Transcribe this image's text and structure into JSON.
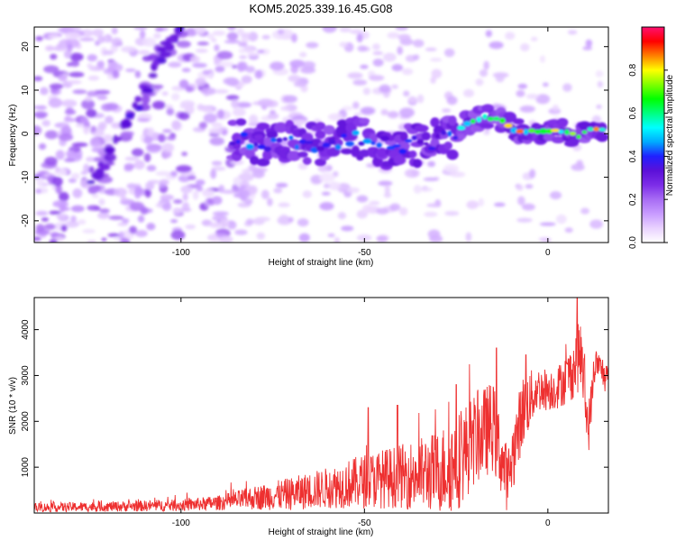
{
  "figure_title": "KOM5.2025.339.16.45.G08",
  "chart_data": [
    {
      "type": "heatmap",
      "name": "spectrogram",
      "xlabel": "Height of straight line (km)",
      "ylabel": "Frequency (Hz)",
      "xlim": [
        -140,
        16.5
      ],
      "ylim": [
        -25,
        24.5
      ],
      "xticks": [
        -100,
        -50,
        0
      ],
      "yticks": [
        -20,
        -10,
        0,
        10,
        20
      ],
      "xtick_labels": [
        "-100",
        "-50",
        "0"
      ],
      "ytick_labels": [
        "-20",
        "-10",
        "0",
        "10",
        "20"
      ],
      "colorbar": {
        "label": "Normalized spectral amplitude",
        "range": [
          0.0,
          1.0
        ],
        "ticks": [
          "0.0",
          "0.2",
          "0.4",
          "0.6",
          "0.8"
        ],
        "tick_values": [
          0.0,
          0.2,
          0.4,
          0.6,
          0.8
        ],
        "colors": [
          "#ffffff",
          "#e9d2ff",
          "#c89cff",
          "#a86cf4",
          "#7d2de8",
          "#5b10d8",
          "#2020ff",
          "#00aaff",
          "#00ffff",
          "#00ff80",
          "#00ff00",
          "#80ff00",
          "#ffff00",
          "#ff8000",
          "#ff0000",
          "#ff1070"
        ]
      },
      "strong_trace": [
        {
          "x": -86,
          "f": -1.2
        },
        {
          "x": -80,
          "f": -2.2
        },
        {
          "x": -74,
          "f": -2.0
        },
        {
          "x": -66,
          "f": -2.3
        },
        {
          "x": -60,
          "f": -2.1
        },
        {
          "x": -54,
          "f": -1.2
        },
        {
          "x": -48,
          "f": -1.6
        },
        {
          "x": -42,
          "f": -3.4
        },
        {
          "x": -36,
          "f": -2.4
        },
        {
          "x": -30,
          "f": -1.6
        },
        {
          "x": -26,
          "f": -0.8
        },
        {
          "x": -22,
          "f": 2.4
        },
        {
          "x": -18,
          "f": 3.8
        },
        {
          "x": -13,
          "f": 3.4
        },
        {
          "x": -9,
          "f": 0.8
        },
        {
          "x": -4,
          "f": 0.4
        },
        {
          "x": 0,
          "f": 0.5
        },
        {
          "x": 4,
          "f": 0.5
        },
        {
          "x": 8,
          "f": -0.6
        },
        {
          "x": 12,
          "f": 0.9
        },
        {
          "x": 16,
          "f": 0.8
        }
      ],
      "diagonal_feature": [
        {
          "x": -125,
          "f": -12
        },
        {
          "x": -118,
          "f": -3
        },
        {
          "x": -111,
          "f": 8
        },
        {
          "x": -104,
          "f": 20
        },
        {
          "x": -100,
          "f": 25
        }
      ]
    },
    {
      "type": "line",
      "name": "snr",
      "xlabel": "Height of straight line (km)",
      "ylabel": "SNR (10 * v/v)",
      "xlim": [
        -140,
        16.5
      ],
      "ylim": [
        0,
        4700
      ],
      "xticks": [
        -100,
        -50,
        0
      ],
      "yticks": [
        1000,
        2000,
        3000,
        4000
      ],
      "xtick_labels": [
        "-100",
        "-50",
        "0"
      ],
      "ytick_labels": [
        "1000",
        "2000",
        "3000",
        "4000"
      ],
      "color": "#ee3030",
      "envelope": [
        {
          "x": -140,
          "base": 120,
          "amp": 100
        },
        {
          "x": -120,
          "base": 140,
          "amp": 110
        },
        {
          "x": -100,
          "base": 170,
          "amp": 130
        },
        {
          "x": -90,
          "base": 220,
          "amp": 160
        },
        {
          "x": -80,
          "base": 330,
          "amp": 260
        },
        {
          "x": -70,
          "base": 420,
          "amp": 360
        },
        {
          "x": -60,
          "base": 550,
          "amp": 450
        },
        {
          "x": -50,
          "base": 700,
          "amp": 600
        },
        {
          "x": -40,
          "base": 800,
          "amp": 700
        },
        {
          "x": -30,
          "base": 900,
          "amp": 900
        },
        {
          "x": -25,
          "base": 1100,
          "amp": 1100
        },
        {
          "x": -20,
          "base": 1600,
          "amp": 1000
        },
        {
          "x": -15,
          "base": 1900,
          "amp": 1000
        },
        {
          "x": -11,
          "base": 700,
          "amp": 700
        },
        {
          "x": -7,
          "base": 2200,
          "amp": 800
        },
        {
          "x": -3,
          "base": 2700,
          "amp": 500
        },
        {
          "x": 2,
          "base": 2700,
          "amp": 450
        },
        {
          "x": 6,
          "base": 3000,
          "amp": 600
        },
        {
          "x": 9,
          "base": 3500,
          "amp": 800
        },
        {
          "x": 11,
          "base": 1800,
          "amp": 600
        },
        {
          "x": 13,
          "base": 3300,
          "amp": 300
        },
        {
          "x": 16.5,
          "base": 2900,
          "amp": 400
        }
      ],
      "peaks": [
        {
          "x": -49,
          "y": 2300
        },
        {
          "x": -41,
          "y": 2350
        },
        {
          "x": -25,
          "y": 2800
        },
        {
          "x": -14,
          "y": 3600
        },
        {
          "x": -6,
          "y": 3450
        },
        {
          "x": 8,
          "y": 4700
        }
      ]
    }
  ]
}
